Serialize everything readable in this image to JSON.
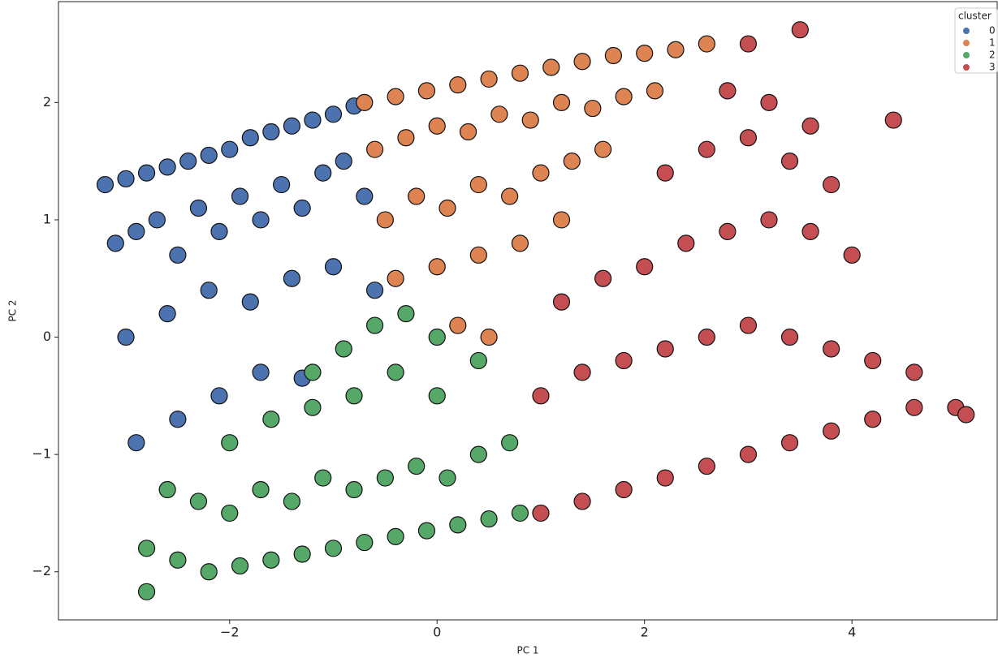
{
  "chart_data": {
    "type": "scatter",
    "x_label": "PC 1",
    "y_label": "PC 2",
    "xlim": [
      -3.65,
      5.4
    ],
    "ylim": [
      -2.41,
      2.86
    ],
    "xticks": [
      {
        "value": -2,
        "label": "−2"
      },
      0,
      2,
      4
    ],
    "yticks": [
      {
        "value": -2,
        "label": "−2"
      },
      {
        "value": -1,
        "label": "−1"
      },
      0,
      1,
      2
    ],
    "legend_title": "cluster",
    "legend_position": "upper right",
    "series": [
      {
        "name": "0",
        "color": "#4c72b0",
        "x": [
          -3.2,
          -3.0,
          -2.8,
          -2.6,
          -2.4,
          -2.2,
          -2.0,
          -1.8,
          -1.6,
          -1.4,
          -1.2,
          -1.0,
          -0.8,
          -3.1,
          -2.9,
          -2.7,
          -2.5,
          -2.3,
          -2.1,
          -1.9,
          -1.7,
          -1.5,
          -1.3,
          -1.1,
          -0.9,
          -0.7,
          -3.0,
          -2.6,
          -2.2,
          -1.8,
          -1.4,
          -1.0,
          -0.6,
          -2.9,
          -2.5,
          -2.1,
          -1.7,
          -1.3
        ],
        "y": [
          1.3,
          1.35,
          1.4,
          1.45,
          1.5,
          1.55,
          1.6,
          1.7,
          1.75,
          1.8,
          1.85,
          1.9,
          1.97,
          0.8,
          0.9,
          1.0,
          0.7,
          1.1,
          0.9,
          1.2,
          1.0,
          1.3,
          1.1,
          1.4,
          1.5,
          1.2,
          0.0,
          0.2,
          0.4,
          0.3,
          0.5,
          0.6,
          0.4,
          -0.9,
          -0.7,
          -0.5,
          -0.3,
          -0.35
        ]
      },
      {
        "name": "1",
        "color": "#dd8452",
        "x": [
          -0.7,
          -0.4,
          -0.1,
          0.2,
          0.5,
          0.8,
          1.1,
          1.4,
          1.7,
          2.0,
          2.3,
          2.6,
          -0.6,
          -0.3,
          0.0,
          0.3,
          0.6,
          0.9,
          1.2,
          1.5,
          1.8,
          2.1,
          -0.5,
          -0.2,
          0.1,
          0.4,
          0.7,
          1.0,
          1.3,
          1.6,
          -0.4,
          0.0,
          0.4,
          0.8,
          1.2,
          0.2,
          0.5
        ],
        "y": [
          2.0,
          2.05,
          2.1,
          2.15,
          2.2,
          2.25,
          2.3,
          2.35,
          2.4,
          2.42,
          2.45,
          2.5,
          1.6,
          1.7,
          1.8,
          1.75,
          1.9,
          1.85,
          2.0,
          1.95,
          2.05,
          2.1,
          1.0,
          1.2,
          1.1,
          1.3,
          1.2,
          1.4,
          1.5,
          1.6,
          0.5,
          0.6,
          0.7,
          0.8,
          1.0,
          0.1,
          0.0
        ]
      },
      {
        "name": "2",
        "color": "#55a868",
        "x": [
          -2.8,
          -2.5,
          -2.2,
          -1.9,
          -1.6,
          -1.3,
          -1.0,
          -0.7,
          -0.4,
          -0.1,
          0.2,
          0.5,
          0.8,
          -2.6,
          -2.3,
          -2.0,
          -1.7,
          -1.4,
          -1.1,
          -0.8,
          -0.5,
          -0.2,
          0.1,
          0.4,
          0.7,
          -2.0,
          -1.6,
          -1.2,
          -0.8,
          -0.4,
          0.0,
          0.4,
          -1.2,
          -0.9,
          -0.6,
          -0.3,
          0.0,
          -2.8
        ],
        "y": [
          -1.8,
          -1.9,
          -2.0,
          -1.95,
          -1.9,
          -1.85,
          -1.8,
          -1.75,
          -1.7,
          -1.65,
          -1.6,
          -1.55,
          -1.5,
          -1.3,
          -1.4,
          -1.5,
          -1.3,
          -1.4,
          -1.2,
          -1.3,
          -1.2,
          -1.1,
          -1.2,
          -1.0,
          -0.9,
          -0.9,
          -0.7,
          -0.6,
          -0.5,
          -0.3,
          -0.5,
          -0.2,
          -0.3,
          -0.1,
          0.1,
          0.2,
          0.0,
          -2.17
        ]
      },
      {
        "name": "3",
        "color": "#c44e52",
        "x": [
          1.0,
          1.4,
          1.8,
          2.2,
          2.6,
          3.0,
          3.4,
          3.8,
          4.2,
          4.6,
          5.0,
          1.0,
          1.4,
          1.8,
          2.2,
          2.6,
          3.0,
          3.4,
          3.8,
          4.2,
          4.6,
          1.2,
          1.6,
          2.0,
          2.4,
          2.8,
          3.2,
          3.6,
          4.0,
          2.2,
          2.6,
          3.0,
          3.4,
          3.8,
          2.8,
          3.2,
          3.6,
          3.0,
          3.5,
          4.4,
          5.1
        ],
        "y": [
          -1.5,
          -1.4,
          -1.3,
          -1.2,
          -1.1,
          -1.0,
          -0.9,
          -0.8,
          -0.7,
          -0.6,
          -0.6,
          -0.5,
          -0.3,
          -0.2,
          -0.1,
          0.0,
          0.1,
          0.0,
          -0.1,
          -0.2,
          -0.3,
          0.3,
          0.5,
          0.6,
          0.8,
          0.9,
          1.0,
          0.9,
          0.7,
          1.4,
          1.6,
          1.7,
          1.5,
          1.3,
          2.1,
          2.0,
          1.8,
          2.5,
          2.62,
          1.85,
          -0.66
        ]
      }
    ]
  }
}
